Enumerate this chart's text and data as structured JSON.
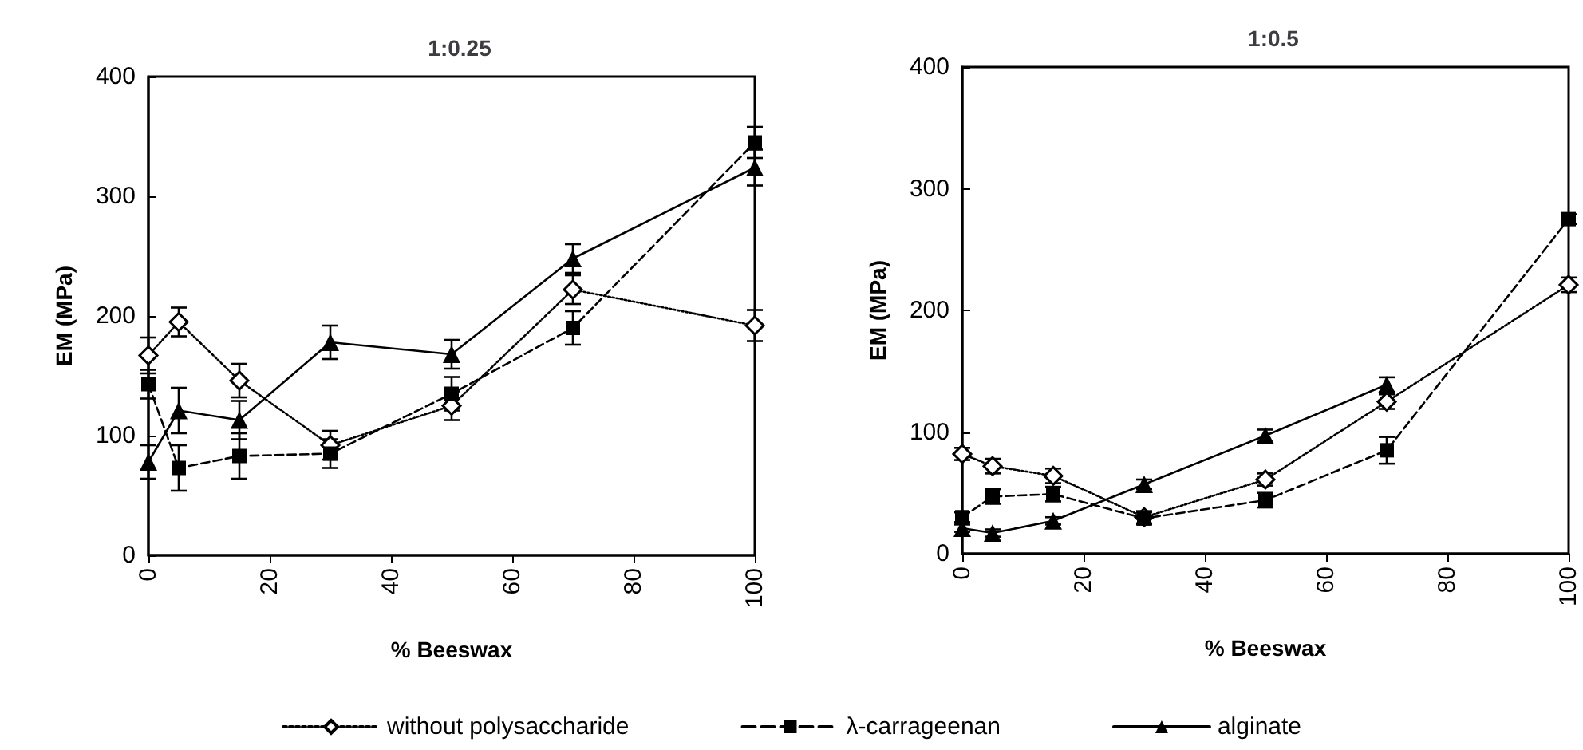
{
  "chart_data": [
    {
      "type": "line",
      "title": "1:0.25",
      "xlabel": "% Beeswax",
      "ylabel": "EM (MPa)",
      "x": [
        0,
        5,
        15,
        30,
        50,
        70,
        100
      ],
      "xlim": [
        0,
        100
      ],
      "xticks": [
        0,
        20,
        40,
        60,
        80,
        100
      ],
      "ylim": [
        0,
        400
      ],
      "yticks": [
        0,
        100,
        200,
        300,
        400
      ],
      "grid": false,
      "legend": "bottom",
      "series": [
        {
          "name": "without polysaccharide",
          "color": "#000000",
          "marker": "diamond",
          "line_style": "dotted",
          "values": [
            167,
            195,
            146,
            92,
            125,
            222,
            192
          ],
          "errors": [
            15,
            12,
            14,
            12,
            12,
            12,
            13
          ]
        },
        {
          "name": "λ-carrageenan",
          "color": "#000000",
          "marker": "square",
          "line_style": "dashed",
          "values": [
            143,
            73,
            83,
            85,
            135,
            190,
            345
          ],
          "errors": [
            12,
            19,
            19,
            12,
            14,
            14,
            13
          ]
        },
        {
          "name": "alginate",
          "color": "#000000",
          "marker": "triangle",
          "line_style": "solid",
          "values": [
            78,
            121,
            113,
            178,
            168,
            248,
            324
          ],
          "errors": [
            14,
            19,
            16,
            14,
            12,
            12,
            15
          ]
        }
      ]
    },
    {
      "type": "line",
      "title": "1:0.5",
      "xlabel": "% Beeswax",
      "ylabel": "EM (MPa)",
      "x": [
        0,
        5,
        15,
        30,
        50,
        70,
        100
      ],
      "xlim": [
        0,
        100
      ],
      "xticks": [
        0,
        20,
        40,
        60,
        80,
        100
      ],
      "ylim": [
        0,
        400
      ],
      "yticks": [
        0,
        100,
        200,
        300,
        400
      ],
      "grid": false,
      "series": [
        {
          "name": "without polysaccharide",
          "color": "#000000",
          "marker": "diamond",
          "line_style": "dotted",
          "values": [
            82,
            72,
            64,
            30,
            61,
            125,
            221
          ],
          "errors": [
            5,
            6,
            6,
            5,
            5,
            6,
            6
          ]
        },
        {
          "name": "λ-carrageenan",
          "color": "#000000",
          "marker": "square",
          "line_style": "dashed",
          "values": [
            30,
            47,
            49,
            29,
            44,
            85,
            275
          ],
          "errors": [
            4,
            6,
            6,
            5,
            6,
            11,
            4
          ]
        },
        {
          "name": "alginate",
          "color": "#000000",
          "marker": "triangle",
          "line_style": "solid",
          "values": [
            21,
            17,
            27,
            57,
            97,
            139,
            null
          ],
          "errors": [
            3,
            3,
            3,
            4,
            5,
            6,
            null
          ]
        }
      ]
    }
  ]
}
